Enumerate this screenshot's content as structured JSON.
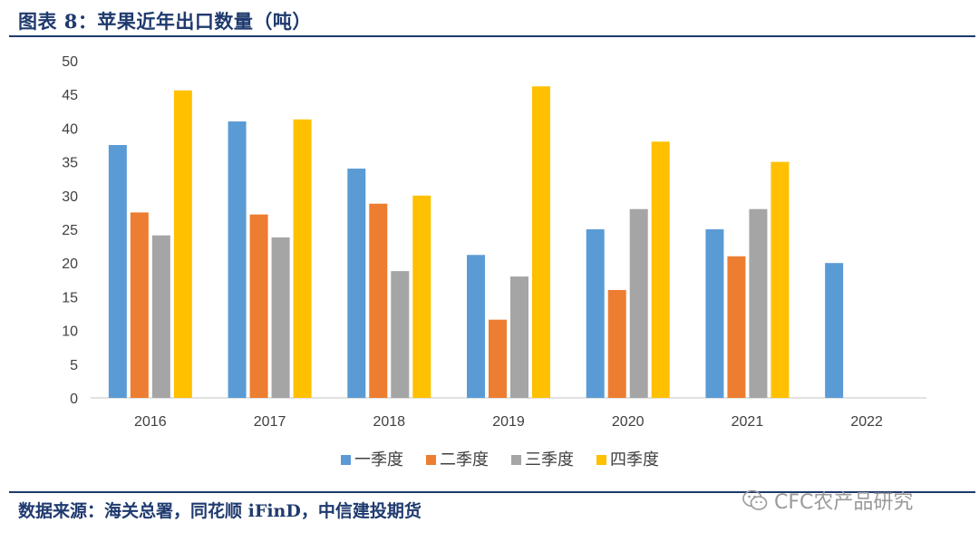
{
  "header": {
    "title": "图表 8：苹果近年出口数量（吨）"
  },
  "footer": {
    "source": "数据来源：海关总署，同花顺 iFinD，中信建投期货",
    "watermark_text": "CFC农产品研究",
    "watermark_icon": "wechat-icon"
  },
  "chart_data": {
    "type": "bar",
    "categories": [
      "2016",
      "2017",
      "2018",
      "2019",
      "2020",
      "2021",
      "2022"
    ],
    "series": [
      {
        "name": "一季度",
        "color": "#5b9bd5",
        "values": [
          37.5,
          41,
          34,
          21.2,
          25,
          25,
          20
        ]
      },
      {
        "name": "二季度",
        "color": "#ed7d31",
        "values": [
          27.5,
          27.2,
          28.8,
          11.6,
          16,
          21,
          null
        ]
      },
      {
        "name": "三季度",
        "color": "#a5a5a5",
        "values": [
          24.1,
          23.8,
          18.8,
          18,
          28,
          28,
          null
        ]
      },
      {
        "name": "四季度",
        "color": "#ffc000",
        "values": [
          45.6,
          41.3,
          30,
          46.2,
          38,
          35,
          null
        ]
      }
    ],
    "ylim": [
      0,
      50
    ],
    "yticks": [
      0,
      5,
      10,
      15,
      20,
      25,
      30,
      35,
      40,
      45,
      50
    ],
    "grid": false,
    "legend": "bottom-center"
  }
}
